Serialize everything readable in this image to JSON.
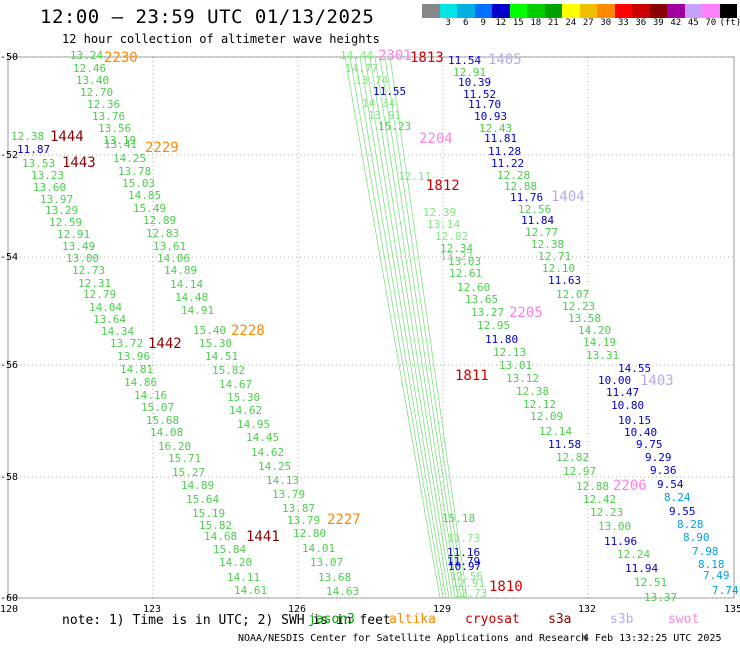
{
  "header": {
    "title": "12:00 – 23:59 UTC 01/13/2025",
    "subtitle": "12 hour collection of altimeter wave heights"
  },
  "scale": {
    "unit": "(ft)",
    "levels": [
      {
        "label": "",
        "color": "#888888"
      },
      {
        "label": "3",
        "color": "#00e5e5"
      },
      {
        "label": "6",
        "color": "#00b0e0"
      },
      {
        "label": "9",
        "color": "#0070ff"
      },
      {
        "label": "12",
        "color": "#0000cc"
      },
      {
        "label": "15",
        "color": "#00ff00"
      },
      {
        "label": "18",
        "color": "#00cc00"
      },
      {
        "label": "21",
        "color": "#00a000"
      },
      {
        "label": "24",
        "color": "#ffff00"
      },
      {
        "label": "27",
        "color": "#f0c000"
      },
      {
        "label": "30",
        "color": "#ff8800"
      },
      {
        "label": "33",
        "color": "#ff0000"
      },
      {
        "label": "36",
        "color": "#cc0000"
      },
      {
        "label": "39",
        "color": "#8b0000"
      },
      {
        "label": "42",
        "color": "#a000a0"
      },
      {
        "label": "45",
        "color": "#c8a0ff"
      },
      {
        "label": "70",
        "color": "#ff80ff"
      },
      {
        "label": "",
        "color": "#000000"
      }
    ]
  },
  "map": {
    "lon_ticks": [
      "120",
      "123",
      "126",
      "129",
      "132",
      "135"
    ],
    "lat_ticks": [
      "-50",
      "-52",
      "-54",
      "-56",
      "-58",
      "-60"
    ]
  },
  "colors": {
    "green": "#4ccd4c",
    "paleGreen": "#80e880",
    "blue": "#0000cc",
    "cyan": "#00a0e0",
    "orange": "#ff8800",
    "darkRed": "#8b0000",
    "red": "#cc0000",
    "pink": "#ff80e0",
    "lavender": "#b8a8f0"
  },
  "tracks": [
    {
      "name": "Track 1444",
      "labels": [
        {
          "text": "13.24",
          "color": "green"
        },
        {
          "text": "12.46",
          "color": "green"
        },
        {
          "text": "13.40",
          "color": "green"
        },
        {
          "text": "12.70",
          "color": "green"
        },
        {
          "text": "12.36",
          "color": "green"
        },
        {
          "text": "13.76",
          "color": "green"
        },
        {
          "text": "13.56",
          "color": "green"
        },
        {
          "text": "12.38",
          "color": "green"
        },
        {
          "text": "13.19",
          "color": "green"
        },
        {
          "text": "11.87",
          "color": "blue"
        },
        {
          "text": "13.53",
          "color": "green"
        },
        {
          "text": "13.23",
          "color": "green"
        },
        {
          "text": "13.60",
          "color": "green"
        },
        {
          "text": "13.97",
          "color": "green"
        },
        {
          "text": "13.29",
          "color": "green"
        },
        {
          "text": "12.59",
          "color": "green"
        },
        {
          "text": "12.91",
          "color": "green"
        },
        {
          "text": "13.49",
          "color": "green"
        },
        {
          "text": "13.00",
          "color": "green"
        },
        {
          "text": "12.73",
          "color": "green"
        },
        {
          "text": "12.31",
          "color": "green"
        },
        {
          "text": "12.79",
          "color": "green"
        },
        {
          "text": "14.04",
          "color": "green"
        },
        {
          "text": "13.64",
          "color": "green"
        },
        {
          "text": "14.34",
          "color": "green"
        },
        {
          "text": "13.72",
          "color": "green"
        },
        {
          "text": "13.96",
          "color": "green"
        },
        {
          "text": "14.81",
          "color": "green"
        },
        {
          "text": "14.86",
          "color": "green"
        },
        {
          "text": "14.16",
          "color": "green"
        },
        {
          "text": "15.07",
          "color": "green"
        },
        {
          "text": "15.68",
          "color": "green"
        },
        {
          "text": "14.08",
          "color": "green"
        },
        {
          "text": "16.20",
          "color": "green"
        },
        {
          "text": "15.71",
          "color": "green"
        },
        {
          "text": "15.27",
          "color": "green"
        },
        {
          "text": "14.89",
          "color": "green"
        },
        {
          "text": "15.64",
          "color": "green"
        },
        {
          "text": "15.19",
          "color": "green"
        },
        {
          "text": "15.82",
          "color": "green"
        },
        {
          "text": "14.68",
          "color": "green"
        },
        {
          "text": "15.84",
          "color": "green"
        },
        {
          "text": "14.20",
          "color": "green"
        },
        {
          "text": "14.11",
          "color": "green"
        },
        {
          "text": "14.61",
          "color": "green"
        }
      ]
    },
    {
      "name": "Track 2230",
      "labels": [
        {
          "text": "13.41",
          "color": "green"
        },
        {
          "text": "14.25",
          "color": "green"
        },
        {
          "text": "13.78",
          "color": "green"
        },
        {
          "text": "15.03",
          "color": "green"
        },
        {
          "text": "14.85",
          "color": "green"
        },
        {
          "text": "15.49",
          "color": "green"
        },
        {
          "text": "12.89",
          "color": "green"
        },
        {
          "text": "12.83",
          "color": "green"
        },
        {
          "text": "13.61",
          "color": "green"
        },
        {
          "text": "14.06",
          "color": "green"
        },
        {
          "text": "14.89",
          "color": "green"
        },
        {
          "text": "14.14",
          "color": "green"
        },
        {
          "text": "14.48",
          "color": "green"
        },
        {
          "text": "14.91",
          "color": "green"
        },
        {
          "text": "15.40",
          "color": "green"
        },
        {
          "text": "15.30",
          "color": "green"
        },
        {
          "text": "14.51",
          "color": "green"
        },
        {
          "text": "15.82",
          "color": "green"
        },
        {
          "text": "14.67",
          "color": "green"
        },
        {
          "text": "15.30",
          "color": "green"
        },
        {
          "text": "14.62",
          "color": "green"
        },
        {
          "text": "14.95",
          "color": "green"
        },
        {
          "text": "14.45",
          "color": "green"
        },
        {
          "text": "14.62",
          "color": "green"
        },
        {
          "text": "14.25",
          "color": "green"
        },
        {
          "text": "14.13",
          "color": "green"
        },
        {
          "text": "13.79",
          "color": "green"
        },
        {
          "text": "13.87",
          "color": "green"
        },
        {
          "text": "13.79",
          "color": "green"
        },
        {
          "text": "12.80",
          "color": "green"
        },
        {
          "text": "14.01",
          "color": "green"
        },
        {
          "text": "13.07",
          "color": "green"
        },
        {
          "text": "13.68",
          "color": "green"
        },
        {
          "text": "14.63",
          "color": "green"
        }
      ]
    },
    {
      "name": "Track 1405",
      "labels": [
        {
          "text": "11.54",
          "color": "blue"
        },
        {
          "text": "12.91",
          "color": "green"
        },
        {
          "text": "10.39",
          "color": "blue"
        },
        {
          "text": "11.52",
          "color": "blue"
        },
        {
          "text": "11.70",
          "color": "blue"
        },
        {
          "text": "10.93",
          "color": "blue"
        },
        {
          "text": "12.43",
          "color": "green"
        },
        {
          "text": "11.81",
          "color": "blue"
        },
        {
          "text": "11.28",
          "color": "blue"
        },
        {
          "text": "11.22",
          "color": "blue"
        },
        {
          "text": "12.28",
          "color": "green"
        },
        {
          "text": "12.88",
          "color": "green"
        },
        {
          "text": "11.76",
          "color": "blue"
        },
        {
          "text": "12.56",
          "color": "green"
        },
        {
          "text": "11.84",
          "color": "blue"
        },
        {
          "text": "12.77",
          "color": "green"
        },
        {
          "text": "12.38",
          "color": "green"
        },
        {
          "text": "12.71",
          "color": "green"
        },
        {
          "text": "12.10",
          "color": "green"
        },
        {
          "text": "11.63",
          "color": "blue"
        },
        {
          "text": "12.07",
          "color": "green"
        },
        {
          "text": "12.23",
          "color": "green"
        },
        {
          "text": "13.58",
          "color": "green"
        },
        {
          "text": "14.20",
          "color": "green"
        },
        {
          "text": "14.19",
          "color": "green"
        },
        {
          "text": "13.31",
          "color": "green"
        }
      ]
    },
    {
      "name": "Track 1403",
      "labels": [
        {
          "text": "14.55",
          "color": "blue"
        },
        {
          "text": "10.00",
          "color": "blue"
        },
        {
          "text": "11.47",
          "color": "blue"
        },
        {
          "text": "10.80",
          "color": "blue"
        },
        {
          "text": "10.15",
          "color": "blue"
        },
        {
          "text": "10.40",
          "color": "blue"
        },
        {
          "text": "9.75",
          "color": "blue"
        },
        {
          "text": "9.29",
          "color": "blue"
        },
        {
          "text": "9.36",
          "color": "blue"
        },
        {
          "text": "9.54",
          "color": "blue"
        },
        {
          "text": "8.24",
          "color": "cyan"
        },
        {
          "text": "9.55",
          "color": "blue"
        },
        {
          "text": "8.28",
          "color": "cyan"
        },
        {
          "text": "8.90",
          "color": "cyan"
        },
        {
          "text": "7.98",
          "color": "cyan"
        },
        {
          "text": "8.18",
          "color": "cyan"
        },
        {
          "text": "7.49",
          "color": "cyan"
        },
        {
          "text": "7.74",
          "color": "cyan"
        }
      ]
    },
    {
      "name": "Track 2205",
      "labels": [
        {
          "text": "12.34",
          "color": "green"
        },
        {
          "text": "13.03",
          "color": "green"
        },
        {
          "text": "12.61",
          "color": "green"
        },
        {
          "text": "12.60",
          "color": "green"
        },
        {
          "text": "13.65",
          "color": "green"
        },
        {
          "text": "13.27",
          "color": "green"
        },
        {
          "text": "12.95",
          "color": "green"
        },
        {
          "text": "11.80",
          "color": "blue"
        },
        {
          "text": "12.13",
          "color": "green"
        },
        {
          "text": "13.01",
          "color": "green"
        },
        {
          "text": "13.12",
          "color": "green"
        },
        {
          "text": "12.38",
          "color": "green"
        },
        {
          "text": "12.12",
          "color": "green"
        },
        {
          "text": "12.09",
          "color": "green"
        },
        {
          "text": "12.14",
          "color": "green"
        },
        {
          "text": "11.58",
          "color": "blue"
        },
        {
          "text": "12.82",
          "color": "green"
        },
        {
          "text": "12.97",
          "color": "green"
        },
        {
          "text": "12.88",
          "color": "green"
        },
        {
          "text": "12.42",
          "color": "green"
        },
        {
          "text": "12.23",
          "color": "green"
        },
        {
          "text": "13.00",
          "color": "green"
        },
        {
          "text": "11.96",
          "color": "blue"
        },
        {
          "text": "12.24",
          "color": "green"
        },
        {
          "text": "11.94",
          "color": "blue"
        },
        {
          "text": "12.51",
          "color": "green"
        },
        {
          "text": "13.37",
          "color": "green"
        }
      ]
    },
    {
      "name": "Central swath",
      "labels": [
        {
          "text": "14.44",
          "color": "paleGreen"
        },
        {
          "text": "14.77",
          "color": "paleGreen"
        },
        {
          "text": "13.74",
          "color": "paleGreen"
        },
        {
          "text": "11.55",
          "color": "blue"
        },
        {
          "text": "14.34",
          "color": "paleGreen"
        },
        {
          "text": "13.91",
          "color": "paleGreen"
        },
        {
          "text": "15.23",
          "color": "green"
        },
        {
          "text": "12.11",
          "color": "paleGreen"
        },
        {
          "text": "12.39",
          "color": "paleGreen"
        },
        {
          "text": "13.14",
          "color": "paleGreen"
        },
        {
          "text": "12.82",
          "color": "paleGreen"
        },
        {
          "text": "13.27",
          "color": "paleGreen"
        },
        {
          "text": "15.18",
          "color": "green"
        },
        {
          "text": "11.73",
          "color": "paleGreen"
        },
        {
          "text": "11.16",
          "color": "blue"
        },
        {
          "text": "11.79",
          "color": "blue"
        },
        {
          "text": "10.97",
          "color": "blue"
        },
        {
          "text": "12.56",
          "color": "paleGreen"
        },
        {
          "text": "12.91",
          "color": "paleGreen"
        },
        {
          "text": "12.73",
          "color": "paleGreen"
        }
      ]
    }
  ],
  "pass_ids": [
    {
      "text": "2230",
      "color": "orange"
    },
    {
      "text": "1444",
      "color": "darkRed"
    },
    {
      "text": "2229",
      "color": "orange"
    },
    {
      "text": "1443",
      "color": "darkRed"
    },
    {
      "text": "2228",
      "color": "orange"
    },
    {
      "text": "1442",
      "color": "darkRed"
    },
    {
      "text": "2227",
      "color": "orange"
    },
    {
      "text": "1441",
      "color": "darkRed"
    },
    {
      "text": "2301",
      "color": "pink"
    },
    {
      "text": "1813",
      "color": "red"
    },
    {
      "text": "1405",
      "color": "lavender"
    },
    {
      "text": "2204",
      "color": "pink"
    },
    {
      "text": "1812",
      "color": "red"
    },
    {
      "text": "1404",
      "color": "lavender"
    },
    {
      "text": "2205",
      "color": "pink"
    },
    {
      "text": "1811",
      "color": "red"
    },
    {
      "text": "1403",
      "color": "lavender"
    },
    {
      "text": "2206",
      "color": "pink"
    },
    {
      "text": "1810",
      "color": "red"
    }
  ],
  "note": "note: 1) Time is in UTC; 2) SWH is in feet",
  "legend": [
    {
      "text": "jason3",
      "color": "#00a000"
    },
    {
      "text": "altika",
      "color": "#ff8800"
    },
    {
      "text": "cryosat",
      "color": "#cc0000"
    },
    {
      "text": "s3a",
      "color": "#8b0000"
    },
    {
      "text": "s3b",
      "color": "#b8a8f0"
    },
    {
      "text": "swot",
      "color": "#ff80e0"
    }
  ],
  "footer": {
    "source": "NOAA/NESDIS Center for Satellite Applications and Research",
    "date": "4 Feb 13:32:25 UTC 2025"
  }
}
